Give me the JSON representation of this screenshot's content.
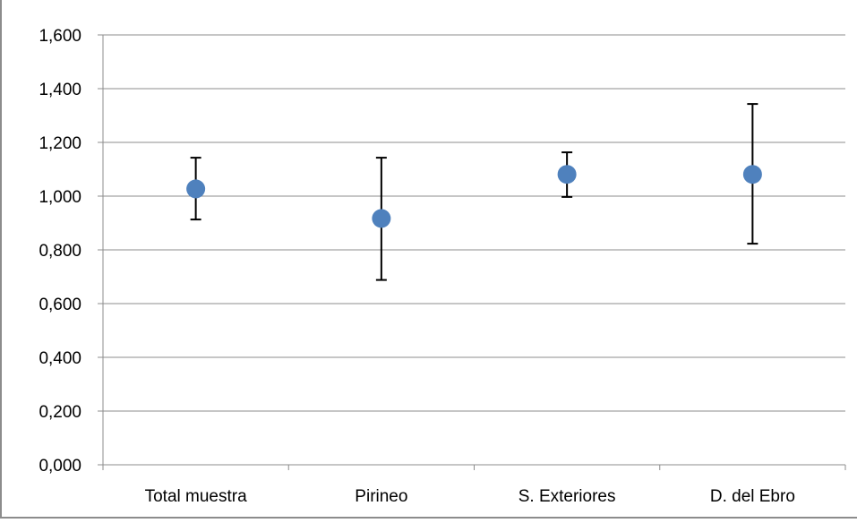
{
  "chart_data": {
    "type": "scatter",
    "categories": [
      "Total muestra",
      "Pirineo",
      "S. Exteriores",
      "D. del Ebro"
    ],
    "series": [
      {
        "values": [
          1.027,
          0.917,
          1.081,
          1.081
        ],
        "error_low": [
          0.913,
          0.688,
          0.997,
          0.823
        ],
        "error_high": [
          1.143,
          1.143,
          1.163,
          1.343
        ],
        "color": "#4f81bd"
      }
    ],
    "ylim": [
      0,
      1.6
    ],
    "yticks": [
      0,
      0.2,
      0.4,
      0.6,
      0.8,
      1.0,
      1.2,
      1.4,
      1.6
    ],
    "ytick_labels": [
      "0,000",
      "0,200",
      "0,400",
      "0,600",
      "0,800",
      "1,000",
      "1,200",
      "1,400",
      "1,600"
    ],
    "grid": true,
    "legend": "none",
    "title": "",
    "xlabel": "",
    "ylabel": ""
  }
}
